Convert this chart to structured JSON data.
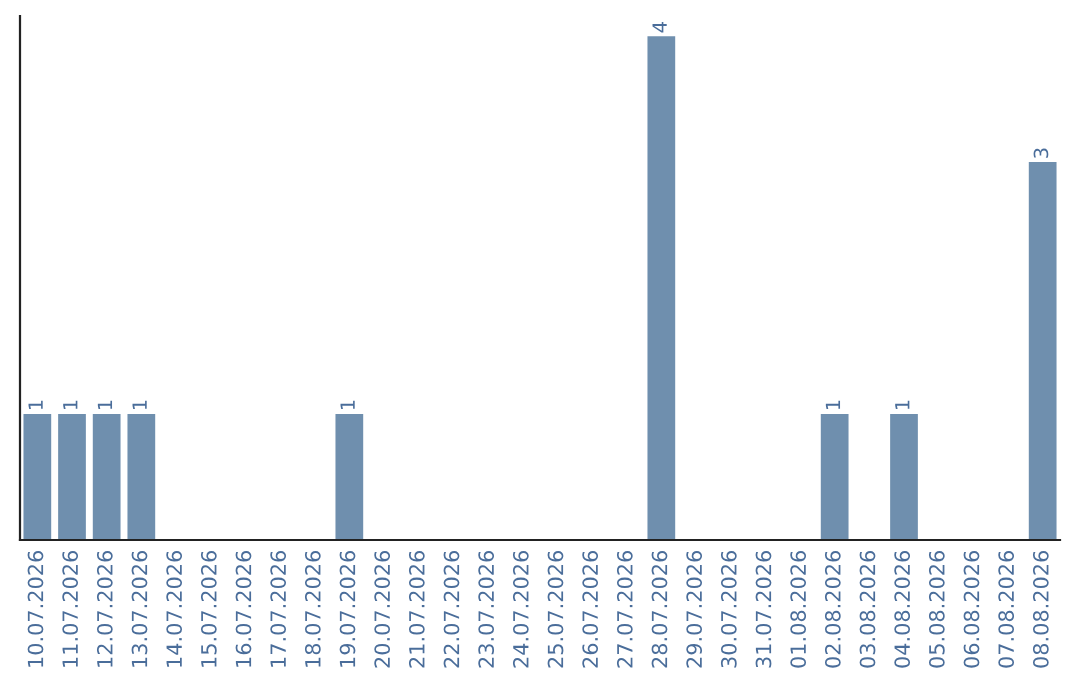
{
  "chart_data": {
    "type": "bar",
    "categories": [
      "10.07.2026",
      "11.07.2026",
      "12.07.2026",
      "13.07.2026",
      "14.07.2026",
      "15.07.2026",
      "16.07.2026",
      "17.07.2026",
      "18.07.2026",
      "19.07.2026",
      "20.07.2026",
      "21.07.2026",
      "22.07.2026",
      "23.07.2026",
      "24.07.2026",
      "25.07.2026",
      "26.07.2026",
      "27.07.2026",
      "28.07.2026",
      "29.07.2026",
      "30.07.2026",
      "31.07.2026",
      "01.08.2026",
      "02.08.2026",
      "03.08.2026",
      "04.08.2026",
      "05.08.2026",
      "06.08.2026",
      "07.08.2026",
      "08.08.2026"
    ],
    "values": [
      1,
      1,
      1,
      1,
      0,
      0,
      0,
      0,
      0,
      1,
      0,
      0,
      0,
      0,
      0,
      0,
      0,
      0,
      4,
      0,
      0,
      0,
      0,
      1,
      0,
      1,
      0,
      0,
      0,
      3
    ],
    "value_labels": [
      "1",
      "1",
      "1",
      "1",
      null,
      null,
      null,
      null,
      null,
      "1",
      null,
      null,
      null,
      null,
      null,
      null,
      null,
      null,
      "4",
      null,
      null,
      null,
      null,
      "1",
      null,
      "1",
      null,
      null,
      null,
      "3"
    ],
    "color": "#6f8fae",
    "tick_labels": "x",
    "grid": false,
    "legend": false
  }
}
